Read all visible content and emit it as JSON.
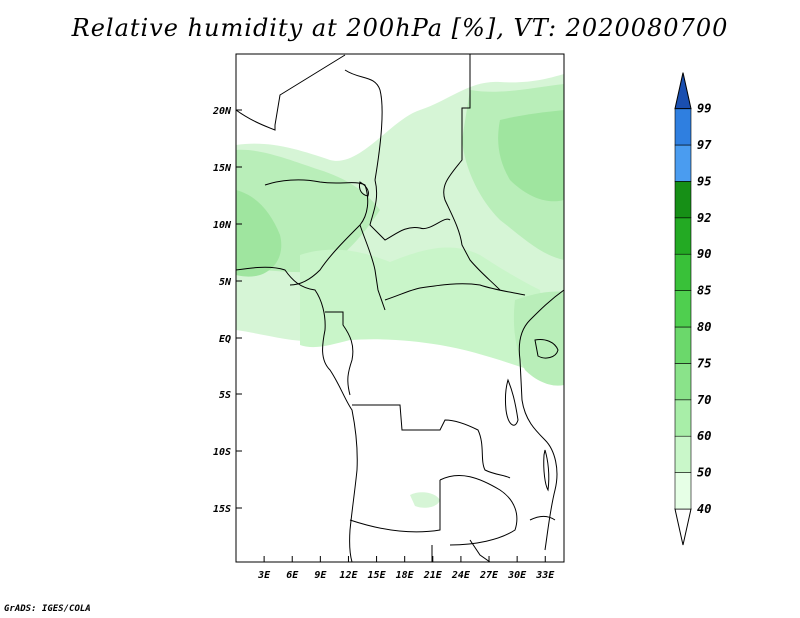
{
  "title": "Relative humidity at 200hPa [%], VT: 2020080700",
  "credit": "GrADS: IGES/COLA",
  "map": {
    "lat_labels": [
      "20N",
      "15N",
      "10N",
      "5N",
      "EQ",
      "5S",
      "10S",
      "15S"
    ],
    "lon_labels": [
      "3E",
      "6E",
      "9E",
      "12E",
      "15E",
      "18E",
      "21E",
      "24E",
      "27E",
      "30E",
      "33E"
    ],
    "lon_range": [
      0,
      35
    ],
    "lat_range": [
      -20,
      25
    ]
  },
  "colorbar": {
    "levels": [
      "40",
      "50",
      "60",
      "70",
      "75",
      "80",
      "85",
      "90",
      "92",
      "95",
      "97",
      "99"
    ],
    "colors": [
      "#e6ffe6",
      "#c9f7c9",
      "#a8eea8",
      "#8ae38a",
      "#6bd86b",
      "#4fcf4f",
      "#39c139",
      "#23aa23",
      "#168f16",
      "#4a9cf0",
      "#2f7fe0",
      "#1e5fc8",
      "#1a4fb0"
    ]
  }
}
